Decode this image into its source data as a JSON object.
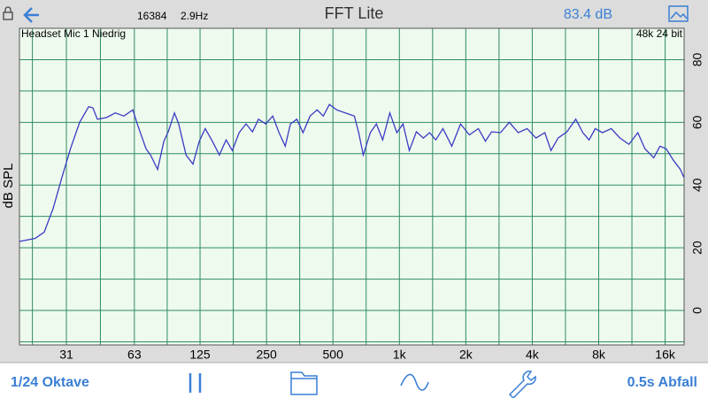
{
  "header": {
    "buffer": "16384",
    "resolution": "2.9Hz",
    "title": "FFT Lite",
    "level": "83.4 dB"
  },
  "chart_data": {
    "type": "line",
    "input": "Headset Mic 1 Niedrig",
    "format": "48k 24 bit",
    "y_label": "dB SPL",
    "x": [
      19.0,
      22.4,
      24.6,
      27.0,
      29.6,
      32.5,
      35.6,
      39.1,
      40.9,
      42.8,
      47.0,
      51.6,
      56.5,
      62,
      64.9,
      71.2,
      74.6,
      80.3,
      85.7,
      89.7,
      95.7,
      100,
      108,
      116,
      124,
      132,
      142,
      153,
      164,
      175,
      188,
      202,
      216,
      230,
      248,
      267,
      285,
      304,
      321,
      343,
      366,
      394,
      424,
      452,
      482,
      520,
      570,
      625,
      654,
      686,
      738,
      787,
      840,
      905,
      974,
      1039,
      1109,
      1194,
      1285,
      1371,
      1462,
      1575,
      1727,
      1894,
      2077,
      2279,
      2455,
      2618,
      2872,
      3150,
      3455,
      3790,
      4157,
      4559,
      4862,
      5236,
      5742,
      6299,
      6783,
      7236,
      7720,
      8314,
      9118,
      9998,
      10968,
      12029,
      12955,
      14205,
      15156,
      16170,
      17410,
      18746,
      19446
    ],
    "values": [
      22,
      23,
      25,
      32.6,
      42.5,
      52,
      60,
      65,
      64.6,
      61,
      61.5,
      63,
      62,
      64,
      59.5,
      51.5,
      49.6,
      45,
      54,
      57,
      63,
      59.5,
      49.6,
      46.7,
      54,
      58,
      54,
      49.6,
      54.4,
      51,
      56.7,
      59.5,
      57,
      61,
      59.5,
      62,
      56.7,
      52.4,
      59.5,
      61,
      56.7,
      62,
      64,
      62,
      65.7,
      64,
      63,
      62,
      56.7,
      49.6,
      56.7,
      59.5,
      54.4,
      63,
      56.7,
      59.5,
      51,
      57,
      55,
      56.7,
      54.4,
      58,
      52.4,
      59.5,
      56,
      58,
      54,
      57,
      56.7,
      60,
      56.7,
      58,
      55,
      56.7,
      51,
      55,
      57,
      61,
      56.7,
      54.4,
      58,
      56.7,
      58,
      55,
      53,
      56.7,
      51.6,
      48.7,
      52.4,
      51.6,
      48,
      45,
      42.5
    ],
    "color": "#3b3bc4",
    "xlim": [
      19,
      19500
    ],
    "log_x": true,
    "xticks": [
      31,
      63,
      125,
      250,
      500,
      {
        "value": 1000,
        "label": "1k"
      },
      {
        "value": 2000,
        "label": "2k"
      },
      {
        "value": 4000,
        "label": "4k"
      },
      {
        "value": 8000,
        "label": "8k"
      },
      {
        "value": 16000,
        "label": "16k"
      }
    ],
    "ylim": [
      -11,
      90
    ],
    "yticks": [
      0,
      20,
      40,
      60,
      80
    ],
    "grid": true
  },
  "toolbar": {
    "resolution": "1/24 Oktave",
    "decay": "0.5s Abfall"
  }
}
